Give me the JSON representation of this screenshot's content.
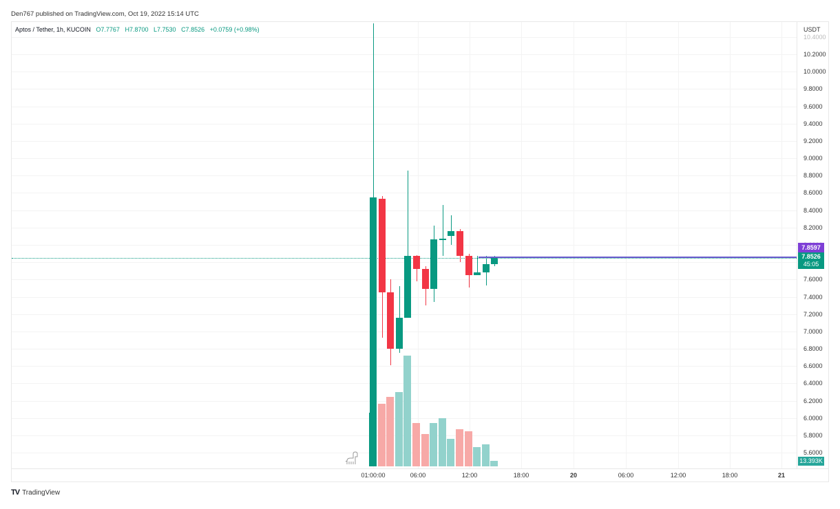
{
  "header": {
    "published": "Den767 published on TradingView.com, Oct 19, 2022 15:14 UTC"
  },
  "legend": {
    "symbol": "Aptos / Tether, 1h, KUCOIN",
    "open": "O7.7767",
    "high": "H7.8700",
    "low": "L7.7530",
    "close": "C7.8526",
    "change": "+0.0759 (+0.98%)"
  },
  "price_axis": {
    "currency": "USDT",
    "ticks": [
      "10.4000",
      "10.2000",
      "10.0000",
      "9.8000",
      "9.6000",
      "9.4000",
      "9.2000",
      "9.0000",
      "8.8000",
      "8.6000",
      "8.4000",
      "8.2000",
      "8.0000",
      "7.6000",
      "7.4000",
      "7.2000",
      "7.0000",
      "6.8000",
      "6.6000",
      "6.4000",
      "6.2000",
      "6.0000",
      "5.8000",
      "5.6000"
    ],
    "badge_line": "7.8597",
    "badge_last": "7.8526",
    "badge_countdown": "45:05",
    "badge_volume": "13.393K"
  },
  "time_axis": {
    "ticks": [
      "01:00:00",
      "06:00",
      "12:00",
      "18:00",
      "20",
      "06:00",
      "12:00",
      "18:00",
      "21"
    ]
  },
  "footer": {
    "logo": "TV",
    "brand": "TradingView"
  },
  "colors": {
    "up": "#089981",
    "down": "#f23645",
    "vol_up": "#92d2cc",
    "vol_down": "#f7a9a7",
    "hline": "#6a5acd"
  },
  "chart_data": {
    "type": "candlestick",
    "title": "Aptos / Tether, 1h, KUCOIN",
    "xlabel": "",
    "ylabel": "USDT",
    "ylim": [
      5.5,
      10.45
    ],
    "x": [
      "Oct19 01:00",
      "02:00",
      "03:00",
      "04:00",
      "05:00",
      "06:00",
      "07:00",
      "08:00",
      "09:00",
      "10:00",
      "11:00",
      "12:00",
      "13:00",
      "14:00",
      "15:00"
    ],
    "open": [
      5.5,
      8.53,
      7.45,
      6.8,
      7.16,
      7.87,
      7.72,
      7.49,
      8.06,
      8.1,
      8.16,
      7.87,
      7.65,
      7.68,
      7.78
    ],
    "high": [
      10.56,
      8.56,
      7.6,
      7.52,
      8.86,
      7.88,
      7.75,
      8.22,
      8.46,
      8.34,
      8.18,
      7.9,
      7.87,
      7.87,
      7.87
    ],
    "low": [
      5.5,
      6.93,
      6.61,
      6.75,
      7.16,
      7.58,
      7.3,
      7.34,
      7.87,
      8.0,
      7.8,
      7.51,
      7.65,
      7.53,
      7.75
    ],
    "close": [
      8.55,
      7.45,
      6.8,
      7.16,
      7.87,
      7.72,
      7.49,
      8.06,
      8.07,
      8.16,
      7.87,
      7.65,
      7.68,
      7.78,
      7.85
    ],
    "volume_rel": [
      78,
      91,
      101,
      108,
      161,
      63,
      47,
      63,
      70,
      40,
      54,
      51,
      28,
      32,
      8
    ],
    "horizontal_line": 7.8597,
    "last_price": 7.8526,
    "last_volume": "13.393K",
    "grid": true
  }
}
